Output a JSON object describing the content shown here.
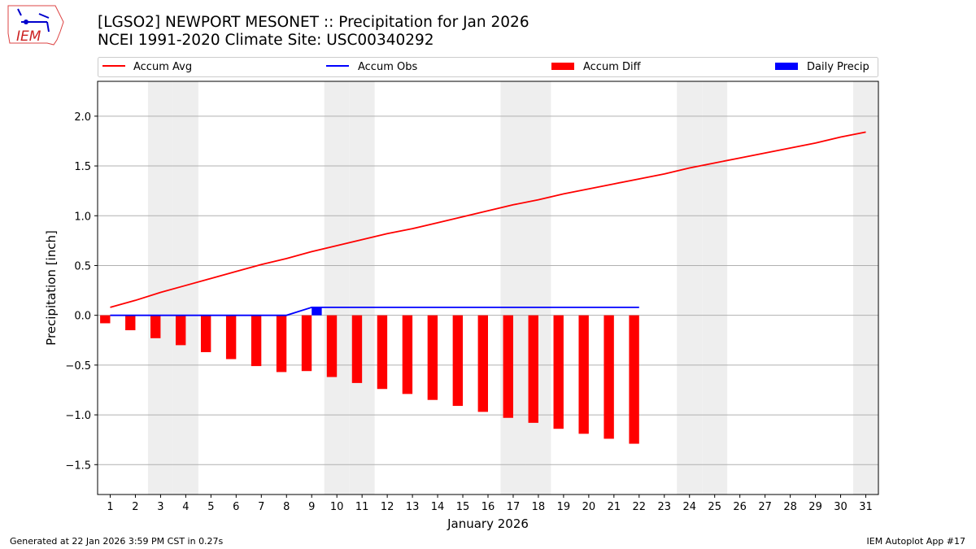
{
  "header": {
    "title": "[LGSO2] NEWPORT MESONET :: Precipitation for Jan 2026",
    "subtitle": "NCEI 1991-2020 Climate Site: USC00340292"
  },
  "logo": {
    "text": "IEM"
  },
  "footer": {
    "left": "Generated at 22 Jan 2026 3:59 PM CST in 0.27s",
    "right": "IEM Autoplot App #17"
  },
  "chart_data": {
    "type": "bar",
    "xlabel": "January 2026",
    "ylabel": "Precipitation [inch]",
    "xlim": [
      0.5,
      31.5
    ],
    "ylim": [
      -1.8,
      2.35
    ],
    "yticks": [
      -1.5,
      -1.0,
      -0.5,
      0.0,
      0.5,
      1.0,
      1.5,
      2.0
    ],
    "ytick_labels": [
      "−1.5",
      "−1.0",
      "−0.5",
      "0.0",
      "0.5",
      "1.0",
      "1.5",
      "2.0"
    ],
    "grid": "horizontal",
    "legend_placement": "top",
    "weekend_days": [
      3,
      4,
      10,
      11,
      17,
      18,
      24,
      25,
      31
    ],
    "days": [
      1,
      2,
      3,
      4,
      5,
      6,
      7,
      8,
      9,
      10,
      11,
      12,
      13,
      14,
      15,
      16,
      17,
      18,
      19,
      20,
      21,
      22,
      23,
      24,
      25,
      26,
      27,
      28,
      29,
      30,
      31
    ],
    "series": [
      {
        "name": "Accum Avg",
        "type": "line",
        "color": "#ff0000",
        "values": [
          0.08,
          0.15,
          0.23,
          0.3,
          0.37,
          0.44,
          0.51,
          0.57,
          0.64,
          0.7,
          0.76,
          0.82,
          0.87,
          0.93,
          0.99,
          1.05,
          1.11,
          1.16,
          1.22,
          1.27,
          1.32,
          1.37,
          1.42,
          1.48,
          1.53,
          1.58,
          1.63,
          1.68,
          1.73,
          1.79,
          1.84
        ]
      },
      {
        "name": "Accum Obs",
        "type": "line",
        "color": "#0000ff",
        "values": [
          0,
          0,
          0,
          0,
          0,
          0,
          0,
          0,
          0.08,
          0.08,
          0.08,
          0.08,
          0.08,
          0.08,
          0.08,
          0.08,
          0.08,
          0.08,
          0.08,
          0.08,
          0.08,
          0.08
        ]
      },
      {
        "name": "Accum Diff",
        "type": "bar",
        "color": "#ff0000",
        "values": [
          -0.08,
          -0.15,
          -0.23,
          -0.3,
          -0.37,
          -0.44,
          -0.51,
          -0.57,
          -0.56,
          -0.62,
          -0.68,
          -0.74,
          -0.79,
          -0.85,
          -0.91,
          -0.97,
          -1.03,
          -1.08,
          -1.14,
          -1.19,
          -1.24,
          -1.29
        ]
      },
      {
        "name": "Daily Precip",
        "type": "bar",
        "color": "#0000ff",
        "values": [
          0,
          0,
          0,
          0,
          0,
          0,
          0,
          0,
          0.08,
          0,
          0,
          0,
          0,
          0,
          0,
          0,
          0,
          0,
          0,
          0,
          0,
          0
        ]
      }
    ]
  }
}
